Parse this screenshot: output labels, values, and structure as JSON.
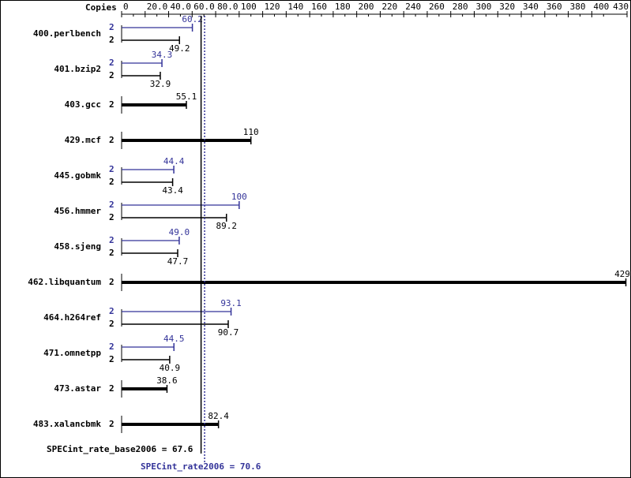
{
  "chart_data": {
    "type": "bar",
    "orientation": "horizontal",
    "copies_label": "Copies",
    "categories": [
      "400.perlbench",
      "401.bzip2",
      "403.gcc",
      "429.mcf",
      "445.gobmk",
      "456.hmmer",
      "458.sjeng",
      "462.libquantum",
      "464.h264ref",
      "471.omnetpp",
      "473.astar",
      "483.xalancbmk"
    ],
    "series": [
      {
        "color": "#333399",
        "copies": [
          2,
          2,
          null,
          null,
          2,
          2,
          2,
          null,
          2,
          2,
          null,
          null
        ],
        "values": [
          60.2,
          34.3,
          null,
          null,
          44.4,
          100,
          49.0,
          null,
          93.1,
          44.5,
          null,
          null
        ],
        "value_labels": [
          "60.2",
          "34.3",
          null,
          null,
          "44.4",
          "100",
          "49.0",
          null,
          "93.1",
          "44.5",
          null,
          null
        ]
      },
      {
        "color": "#000000",
        "copies": [
          2,
          2,
          2,
          2,
          2,
          2,
          2,
          2,
          2,
          2,
          2,
          2
        ],
        "values": [
          49.2,
          32.9,
          55.1,
          110,
          43.4,
          89.2,
          47.7,
          429,
          90.7,
          40.9,
          38.6,
          82.4
        ]
      }
    ],
    "xlim": [
      0,
      430
    ],
    "xticks": [
      0,
      {
        "value": 20,
        "label": "20.0"
      },
      {
        "value": 40,
        "label": "40.0"
      },
      {
        "value": 60,
        "label": "60.0"
      },
      {
        "value": 80,
        "label": "80.0"
      },
      100,
      120,
      140,
      160,
      180,
      200,
      220,
      240,
      260,
      280,
      300,
      320,
      340,
      360,
      380,
      400,
      430
    ],
    "reference_lines": [
      {
        "label": "SPECint_rate_base2006 = 67.6",
        "value": 67.6,
        "color": "#000000",
        "style": "solid"
      },
      {
        "label": "SPECint_rate2006 = 70.6",
        "value": 70.6,
        "color": "#333399",
        "style": "dotted"
      }
    ]
  }
}
